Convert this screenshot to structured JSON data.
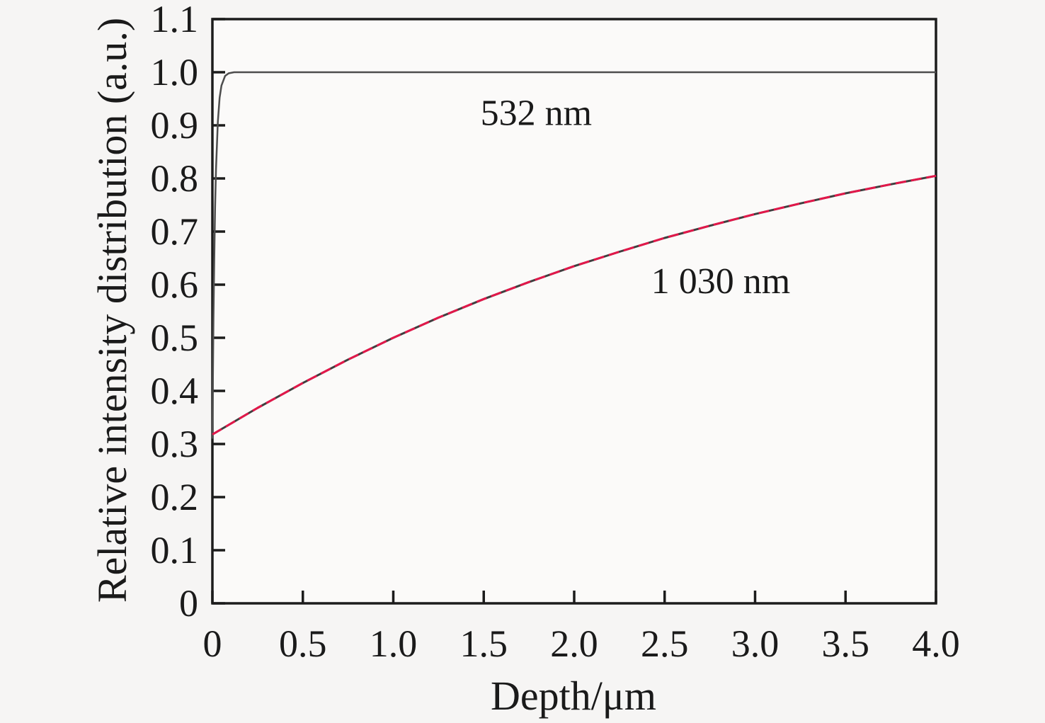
{
  "figure": {
    "background": "#f6f5f4",
    "plot_background": "#fbfaf9",
    "axis_color": "#1c1c1c",
    "tick_label_color": "#1a1a1a",
    "reference_line_color": "#4d4d4d"
  },
  "chart_data": {
    "type": "line",
    "title": "",
    "xlabel": "Depth/μm",
    "ylabel": "Relative intensity distribution (a.u.)",
    "xlim": [
      0,
      4.0
    ],
    "ylim": [
      0,
      1.1
    ],
    "grid": false,
    "legend_position": "inline-annotations",
    "x_ticks": [
      0,
      0.5,
      1.0,
      1.5,
      2.0,
      2.5,
      3.0,
      3.5,
      4.0
    ],
    "x_tick_labels": [
      "0",
      "0.5",
      "1.0",
      "1.5",
      "2.0",
      "2.5",
      "3.0",
      "3.5",
      "4.0"
    ],
    "y_ticks": [
      0,
      0.1,
      0.2,
      0.3,
      0.4,
      0.5,
      0.6,
      0.7,
      0.8,
      0.9,
      1.0,
      1.1
    ],
    "y_tick_labels": [
      "0",
      "0.1",
      "0.2",
      "0.3",
      "0.4",
      "0.5",
      "0.6",
      "0.7",
      "0.8",
      "0.9",
      "1.0",
      "1.1"
    ],
    "series": [
      {
        "name": "532 nm",
        "color": "#4d4d4d",
        "underlay_color": null,
        "dash": null,
        "width": 2.5,
        "points": [
          [
            0,
            0.31
          ],
          [
            0.003,
            0.435
          ],
          [
            0.006,
            0.538
          ],
          [
            0.01,
            0.646
          ],
          [
            0.015,
            0.746
          ],
          [
            0.02,
            0.818
          ],
          [
            0.03,
            0.907
          ],
          [
            0.04,
            0.952
          ],
          [
            0.05,
            0.975
          ],
          [
            0.07,
            0.993
          ],
          [
            0.09,
            0.998
          ],
          [
            0.12,
            1.0
          ],
          [
            0.5,
            1.0
          ],
          [
            1.0,
            1.0
          ],
          [
            1.5,
            1.0
          ],
          [
            2.0,
            1.0
          ],
          [
            2.5,
            1.0
          ],
          [
            3.0,
            1.0
          ],
          [
            3.5,
            1.0
          ],
          [
            4.0,
            1.0
          ]
        ]
      },
      {
        "name": "1 030 nm",
        "color": "#e3174a",
        "underlay_color": "#3f3f3f",
        "dash": "15 7",
        "width": 3,
        "points": [
          [
            0,
            0.318
          ],
          [
            0.25,
            0.368
          ],
          [
            0.5,
            0.415
          ],
          [
            0.75,
            0.459
          ],
          [
            1.0,
            0.5
          ],
          [
            1.25,
            0.538
          ],
          [
            1.5,
            0.573
          ],
          [
            1.75,
            0.605
          ],
          [
            2.0,
            0.635
          ],
          [
            2.25,
            0.662
          ],
          [
            2.5,
            0.688
          ],
          [
            2.75,
            0.711
          ],
          [
            3.0,
            0.733
          ],
          [
            3.25,
            0.753
          ],
          [
            3.5,
            0.772
          ],
          [
            3.75,
            0.789
          ],
          [
            4.0,
            0.805
          ]
        ]
      }
    ],
    "annotations": [
      {
        "text": "532 nm",
        "x": 1.79,
        "y": 0.925,
        "color": "#3e6f60"
      },
      {
        "text": "1 030 nm",
        "x": 2.81,
        "y": 0.608,
        "color": "#e3174a"
      }
    ]
  }
}
